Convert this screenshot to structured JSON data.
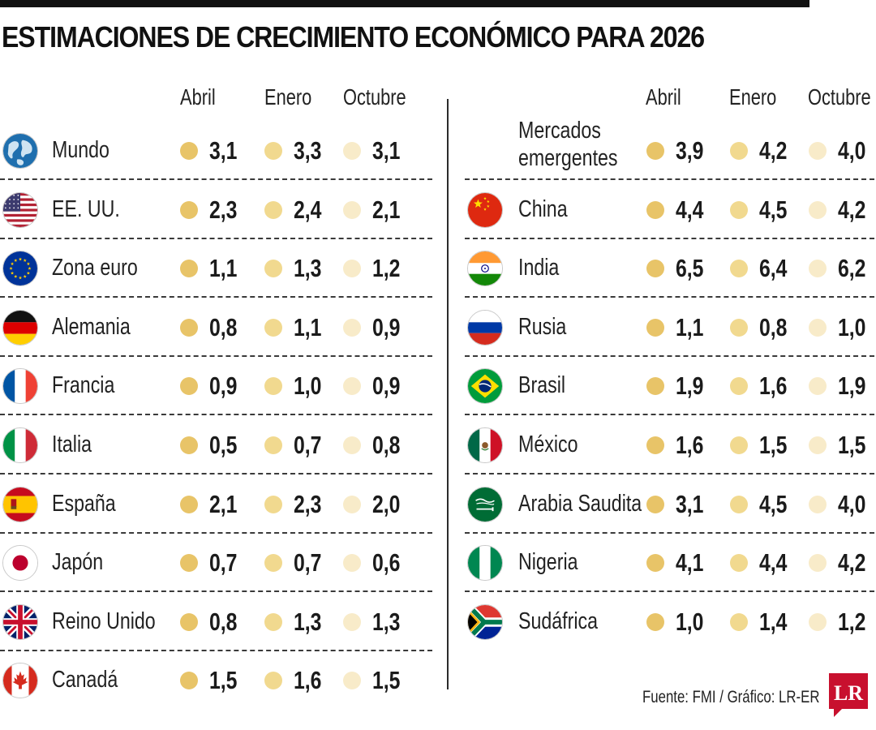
{
  "title": "ESTIMACIONES DE CRECIMIENTO ECONÓMICO PARA 2026",
  "columns": [
    "Abril",
    "Enero",
    "Octubre"
  ],
  "colors": {
    "abril": "#e8c468",
    "enero": "#f1d98f",
    "octubre": "#f8ebc9",
    "logo": "#c8102e",
    "separator": "#3a3a3a"
  },
  "source": "Fuente: FMI / Gráfico: LR-ER",
  "logo_text": "LR",
  "chart_data": {
    "type": "table",
    "title": "ESTIMACIONES DE CRECIMIENTO ECONÓMICO PARA 2026",
    "columns": [
      "Abril",
      "Enero",
      "Octubre"
    ],
    "left": [
      {
        "name": "Mundo",
        "flag": "globe-icon",
        "values": [
          "3,1",
          "3,3",
          "3,1"
        ]
      },
      {
        "name": "EE. UU.",
        "flag": "usa-flag-icon",
        "values": [
          "2,3",
          "2,4",
          "2,1"
        ]
      },
      {
        "name": "Zona euro",
        "flag": "eu-flag-icon",
        "values": [
          "1,1",
          "1,3",
          "1,2"
        ]
      },
      {
        "name": "Alemania",
        "flag": "germany-flag-icon",
        "values": [
          "0,8",
          "1,1",
          "0,9"
        ]
      },
      {
        "name": "Francia",
        "flag": "france-flag-icon",
        "values": [
          "0,9",
          "1,0",
          "0,9"
        ]
      },
      {
        "name": "Italia",
        "flag": "italy-flag-icon",
        "values": [
          "0,5",
          "0,7",
          "0,8"
        ]
      },
      {
        "name": "España",
        "flag": "spain-flag-icon",
        "values": [
          "2,1",
          "2,3",
          "2,0"
        ]
      },
      {
        "name": "Japón",
        "flag": "japan-flag-icon",
        "values": [
          "0,7",
          "0,7",
          "0,6"
        ]
      },
      {
        "name": "Reino Unido",
        "flag": "uk-flag-icon",
        "values": [
          "0,8",
          "1,3",
          "1,3"
        ]
      },
      {
        "name": "Canadá",
        "flag": "canada-flag-icon",
        "values": [
          "1,5",
          "1,6",
          "1,5"
        ]
      }
    ],
    "right": [
      {
        "name": "Mercados emergentes",
        "name_lines": [
          "Mercados",
          "emergentes"
        ],
        "flag": "",
        "values": [
          "3,9",
          "4,2",
          "4,0"
        ]
      },
      {
        "name": "China",
        "flag": "china-flag-icon",
        "values": [
          "4,4",
          "4,5",
          "4,2"
        ]
      },
      {
        "name": "India",
        "flag": "india-flag-icon",
        "values": [
          "6,5",
          "6,4",
          "6,2"
        ]
      },
      {
        "name": "Rusia",
        "flag": "russia-flag-icon",
        "values": [
          "1,1",
          "0,8",
          "1,0"
        ]
      },
      {
        "name": "Brasil",
        "flag": "brazil-flag-icon",
        "values": [
          "1,9",
          "1,6",
          "1,9"
        ]
      },
      {
        "name": "México",
        "flag": "mexico-flag-icon",
        "values": [
          "1,6",
          "1,5",
          "1,5"
        ]
      },
      {
        "name": "Arabia Saudita",
        "flag": "saudi-arabia-flag-icon",
        "values": [
          "3,1",
          "4,5",
          "4,0"
        ]
      },
      {
        "name": "Nigeria",
        "flag": "nigeria-flag-icon",
        "values": [
          "4,1",
          "4,4",
          "4,2"
        ]
      },
      {
        "name": "Sudáfrica",
        "flag": "south-africa-flag-icon",
        "values": [
          "1,0",
          "1,4",
          "1,2"
        ]
      }
    ]
  }
}
